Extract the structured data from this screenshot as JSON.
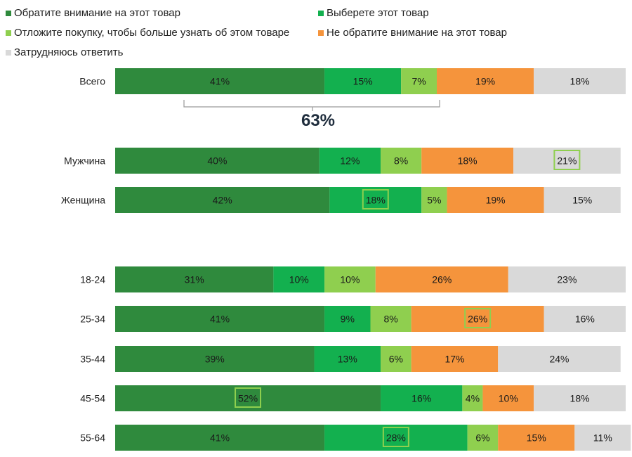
{
  "chart_data": {
    "type": "bar",
    "orientation": "horizontal",
    "stacked": true,
    "unit": "%",
    "legend": {
      "placement": "top",
      "entries": [
        {
          "name": "Обратите внимание на этот товар",
          "color": "#2f8a3d"
        },
        {
          "name": "Выберете этот товар",
          "color": "#13b04f"
        },
        {
          "name": "Отложите покупку, чтобы больше узнать об этом товаре",
          "color": "#8fcf4f"
        },
        {
          "name": "Не обратите внимание на этот товар",
          "color": "#f5943c"
        },
        {
          "name": "Затрудняюсь ответить",
          "color": "#d9d9d9"
        }
      ]
    },
    "categories": [
      "Всего",
      "Мужчина",
      "Женщина",
      "18-24",
      "25-34",
      "35-44",
      "45-54",
      "55-64"
    ],
    "series": [
      {
        "name": "Обратите внимание на этот товар",
        "values": [
          41,
          40,
          42,
          31,
          41,
          39,
          52,
          41
        ]
      },
      {
        "name": "Выберете этот товар",
        "values": [
          15,
          12,
          18,
          10,
          9,
          13,
          16,
          28
        ]
      },
      {
        "name": "Отложите покупку, чтобы больше узнать об этом товаре",
        "values": [
          7,
          8,
          5,
          10,
          8,
          6,
          4,
          6
        ]
      },
      {
        "name": "Не обратите внимание на этот товар",
        "values": [
          19,
          18,
          19,
          26,
          26,
          17,
          10,
          15
        ]
      },
      {
        "name": "Затрудняюсь ответить",
        "values": [
          18,
          21,
          15,
          23,
          16,
          24,
          18,
          11
        ]
      }
    ],
    "highlights": [
      {
        "category": "Мужчина",
        "series": "Затрудняюсь ответить"
      },
      {
        "category": "Женщина",
        "series": "Выберете этот товар"
      },
      {
        "category": "25-34",
        "series": "Не обратите внимание на этот товар"
      },
      {
        "category": "45-54",
        "series": "Обратите внимание на этот товар"
      },
      {
        "category": "55-64",
        "series": "Выберете этот товар"
      }
    ],
    "brace": {
      "category": "Всего",
      "text": "63%"
    },
    "xlim": [
      0,
      100
    ],
    "grid": false
  }
}
